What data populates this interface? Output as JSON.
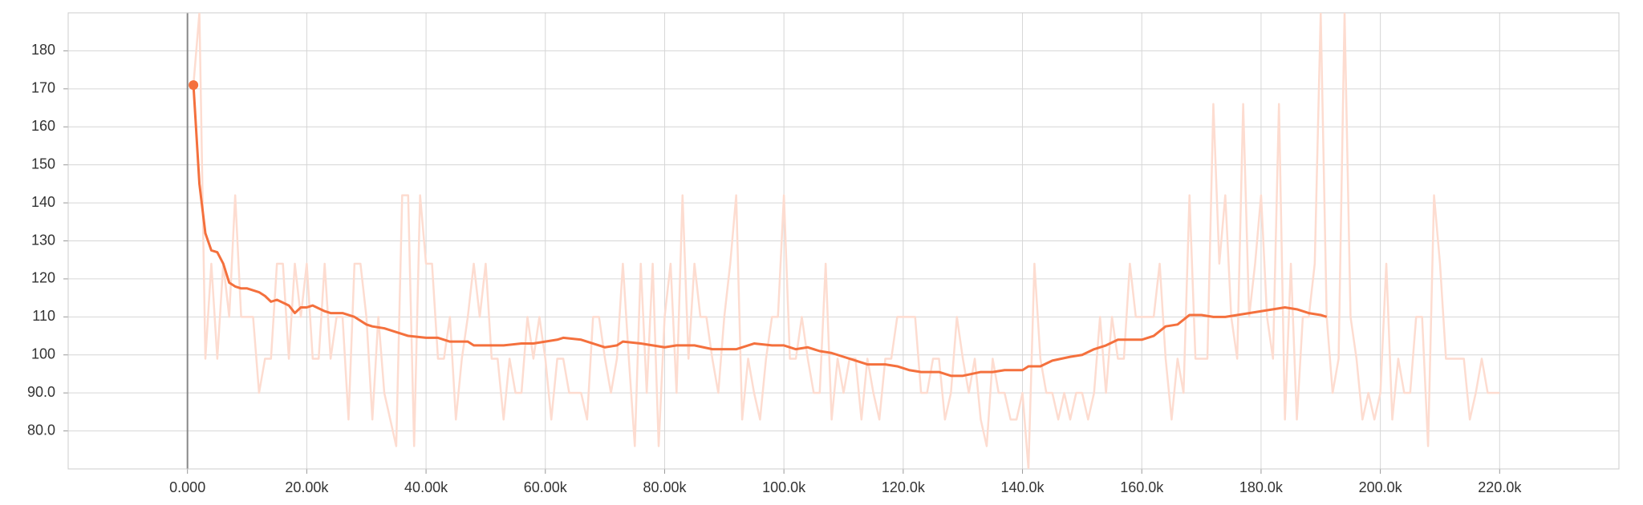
{
  "chart_data": {
    "type": "line",
    "xlim": [
      -20000,
      240000
    ],
    "xticks": [
      {
        "value": 0,
        "label": "0.000"
      },
      {
        "value": 20000,
        "label": "20.00k"
      },
      {
        "value": 40000,
        "label": "40.00k"
      },
      {
        "value": 60000,
        "label": "60.00k"
      },
      {
        "value": 80000,
        "label": "80.00k"
      },
      {
        "value": 100000,
        "label": "100.0k"
      },
      {
        "value": 120000,
        "label": "120.0k"
      },
      {
        "value": 140000,
        "label": "140.0k"
      },
      {
        "value": 160000,
        "label": "160.0k"
      },
      {
        "value": 180000,
        "label": "180.0k"
      },
      {
        "value": 200000,
        "label": "200.0k"
      },
      {
        "value": 220000,
        "label": "220.0k"
      }
    ],
    "ylim": [
      70,
      190
    ],
    "yticks": [
      {
        "value": 80,
        "label": "80.0"
      },
      {
        "value": 90,
        "label": "90.0"
      },
      100,
      110,
      120,
      130,
      140,
      150,
      160,
      170,
      180
    ],
    "grid": true,
    "series": [
      {
        "color": "#fddcd0",
        "x": [
          1000,
          2000,
          3000,
          4000,
          5000,
          6000,
          7000,
          8000,
          9000,
          10000,
          11000,
          12000,
          13000,
          14000,
          15000,
          16000,
          17000,
          18000,
          19000,
          20000,
          21000,
          22000,
          23000,
          24000,
          25000,
          26000,
          27000,
          28000,
          29000,
          30000,
          31000,
          32000,
          33000,
          34000,
          35000,
          36000,
          37000,
          38000,
          39000,
          40000,
          41000,
          42000,
          43000,
          44000,
          45000,
          46000,
          47000,
          48000,
          49000,
          50000,
          51000,
          52000,
          53000,
          54000,
          55000,
          56000,
          57000,
          58000,
          59000,
          60000,
          61000,
          62000,
          63000,
          64000,
          65000,
          66000,
          67000,
          68000,
          69000,
          70000,
          71000,
          72000,
          73000,
          74000,
          75000,
          76000,
          77000,
          78000,
          79000,
          80000,
          81000,
          82000,
          83000,
          84000,
          85000,
          86000,
          87000,
          88000,
          89000,
          90000,
          91000,
          92000,
          93000,
          94000,
          95000,
          96000,
          97000,
          98000,
          99000,
          100000,
          101000,
          102000,
          103000,
          104000,
          105000,
          106000,
          107000,
          108000,
          109000,
          110000,
          111000,
          112000,
          113000,
          114000,
          115000,
          116000,
          117000,
          118000,
          119000,
          120000,
          121000,
          122000,
          123000,
          124000,
          125000,
          126000,
          127000,
          128000,
          129000,
          130000,
          131000,
          132000,
          133000,
          134000,
          135000,
          136000,
          137000,
          138000,
          139000,
          140000,
          141000,
          142000,
          143000,
          144000,
          145000,
          146000,
          147000,
          148000,
          149000,
          150000,
          151000,
          152000,
          153000,
          154000,
          155000,
          156000,
          157000,
          158000,
          159000,
          160000,
          161000,
          162000,
          163000,
          164000,
          165000,
          166000,
          167000,
          168000,
          169000,
          170000,
          171000,
          172000,
          173000,
          174000,
          175000,
          176000,
          177000,
          178000,
          179000,
          180000,
          181000,
          182000,
          183000,
          184000,
          185000,
          186000,
          187000,
          188000,
          189000,
          190000,
          191000,
          192000,
          193000,
          194000,
          195000,
          196000,
          197000,
          198000,
          199000,
          200000,
          201000,
          202000,
          203000,
          204000,
          205000,
          206000,
          207000,
          208000,
          209000,
          210000,
          211000,
          212000,
          213000,
          214000,
          215000,
          216000,
          217000,
          218000,
          219000,
          220000
        ],
        "values": [
          171,
          190,
          99,
          124,
          99,
          124,
          110,
          142,
          110,
          110,
          110,
          90,
          99,
          99,
          124,
          124,
          99,
          124,
          110,
          124,
          99,
          99,
          124,
          99,
          110,
          110,
          83,
          124,
          124,
          110,
          83,
          110,
          90,
          83,
          76,
          142,
          142,
          76,
          142,
          124,
          124,
          99,
          99,
          110,
          83,
          99,
          110,
          124,
          110,
          124,
          99,
          99,
          83,
          99,
          90,
          90,
          110,
          99,
          110,
          99,
          83,
          99,
          99,
          90,
          90,
          90,
          83,
          110,
          110,
          99,
          90,
          99,
          124,
          99,
          76,
          124,
          90,
          124,
          76,
          110,
          124,
          90,
          142,
          99,
          124,
          110,
          110,
          99,
          90,
          110,
          124,
          142,
          83,
          99,
          90,
          83,
          99,
          110,
          110,
          142,
          99,
          99,
          110,
          99,
          90,
          90,
          124,
          83,
          99,
          90,
          99,
          99,
          83,
          99,
          90,
          83,
          99,
          99,
          110,
          110,
          110,
          110,
          90,
          90,
          99,
          99,
          83,
          90,
          110,
          99,
          90,
          99,
          83,
          76,
          99,
          90,
          90,
          83,
          83,
          90,
          70,
          124,
          99,
          90,
          90,
          83,
          90,
          83,
          90,
          90,
          83,
          90,
          110,
          90,
          110,
          99,
          99,
          124,
          110,
          110,
          110,
          110,
          124,
          99,
          83,
          99,
          90,
          142,
          99,
          99,
          99,
          166,
          124,
          142,
          110,
          99,
          166,
          110,
          124,
          142,
          110,
          99,
          166,
          83,
          124,
          83,
          110,
          110,
          124,
          190,
          110,
          90,
          99,
          190,
          110,
          99,
          83,
          90,
          83,
          90,
          124,
          83,
          99,
          90,
          90,
          110,
          110,
          76,
          142,
          124,
          99,
          99,
          99,
          99,
          83,
          90,
          99,
          90,
          90,
          90
        ]
      },
      {
        "color": "#f4703d",
        "x": [
          1000,
          2000,
          3000,
          4000,
          5000,
          6000,
          7000,
          8000,
          9000,
          10000,
          12000,
          13000,
          14000,
          15000,
          17000,
          18000,
          19000,
          20000,
          21000,
          23000,
          24000,
          26000,
          28000,
          30000,
          31000,
          33000,
          35000,
          37000,
          40000,
          42000,
          44000,
          47000,
          48000,
          50000,
          53000,
          56000,
          58000,
          60000,
          62000,
          63000,
          66000,
          68000,
          70000,
          72000,
          73000,
          76000,
          78000,
          80000,
          82000,
          85000,
          88000,
          92000,
          95000,
          98000,
          100000,
          102000,
          104000,
          106000,
          108000,
          110000,
          112000,
          114000,
          117000,
          119000,
          121000,
          123000,
          126000,
          128000,
          130000,
          133000,
          135000,
          137000,
          140000,
          141000,
          143000,
          145000,
          148000,
          150000,
          152000,
          154000,
          156000,
          158000,
          160000,
          162000,
          164000,
          166000,
          168000,
          170000,
          172000,
          174000,
          176000,
          178000,
          180000,
          182000,
          184000,
          186000,
          188000,
          190000,
          191000
        ],
        "values": [
          171,
          145,
          132,
          127.5,
          127,
          124,
          119,
          118,
          117.5,
          117.5,
          116.5,
          115.5,
          114,
          114.5,
          113,
          111,
          112.5,
          112.5,
          113,
          111.5,
          111,
          111,
          110,
          108,
          107.5,
          107,
          106,
          105,
          104.5,
          104.5,
          103.5,
          103.5,
          102.5,
          102.5,
          102.5,
          103,
          103,
          103.5,
          104,
          104.5,
          104,
          103,
          102,
          102.5,
          103.5,
          103,
          102.5,
          102,
          102.5,
          102.5,
          101.5,
          101.5,
          103,
          102.5,
          102.5,
          101.5,
          102,
          101,
          100.5,
          99.5,
          98.5,
          97.5,
          97.5,
          97,
          96,
          95.5,
          95.5,
          94.5,
          94.5,
          95.5,
          95.5,
          96,
          96,
          97,
          97,
          98.5,
          99.5,
          100,
          101.5,
          102.5,
          104,
          104,
          104,
          105,
          107.5,
          108,
          110.5,
          110.5,
          110,
          110,
          110.5,
          111,
          111.5,
          112,
          112.5,
          112,
          111,
          110.5,
          110
        ]
      }
    ]
  }
}
